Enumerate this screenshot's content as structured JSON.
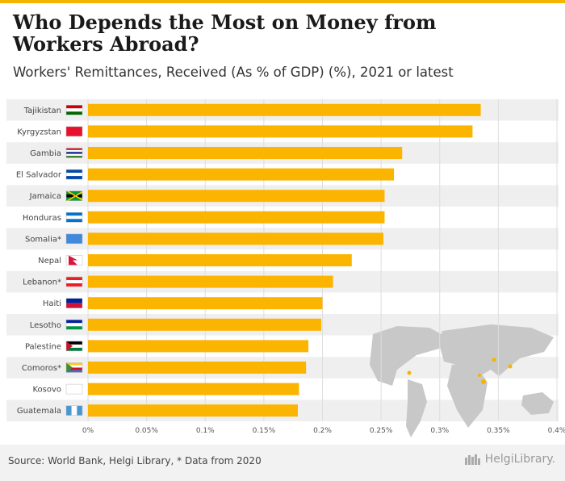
{
  "header": {
    "title": "Who Depends the Most on Money from Workers Abroad?",
    "subtitle": "Workers' Remittances, Received (As % of GDP) (%), 2021 or latest"
  },
  "footer": {
    "source": "Source: World Bank, Helgi Library, * Data from 2020",
    "brand": "HelgiLibrary."
  },
  "colors": {
    "bar": "#FBB400",
    "accent": "#F5B400",
    "grid": "#DDDDDD",
    "row_band": "#EFEFEF"
  },
  "chart_data": {
    "type": "bar",
    "orientation": "horizontal",
    "categories": [
      "Tajikistan",
      "Kyrgyzstan",
      "Gambia",
      "El Salvador",
      "Jamaica",
      "Honduras",
      "Somalia*",
      "Nepal",
      "Lebanon*",
      "Haiti",
      "Lesotho",
      "Palestine",
      "Comoros*",
      "Kosovo",
      "Guatemala"
    ],
    "values": [
      0.335,
      0.328,
      0.268,
      0.261,
      0.253,
      0.253,
      0.252,
      0.225,
      0.209,
      0.2,
      0.199,
      0.188,
      0.186,
      0.18,
      0.179
    ],
    "xticks": [
      "0%",
      "0.05%",
      "0.1%",
      "0.15%",
      "0.2%",
      "0.25%",
      "0.3%",
      "0.35%",
      "0.4%"
    ],
    "xlim": [
      0,
      0.4
    ],
    "grid": true
  }
}
